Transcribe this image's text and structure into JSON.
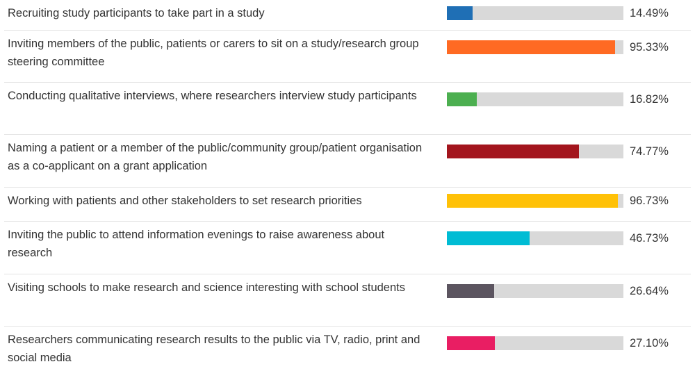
{
  "chart_data": {
    "type": "bar",
    "orientation": "horizontal",
    "xlim": [
      0,
      100
    ],
    "grid": false,
    "legend": "none",
    "categories": [
      "Recruiting study participants to take part in a study",
      "Inviting members of the public, patients or carers to sit on a study/research group steering committee",
      "Conducting qualitative interviews, where researchers interview study participants",
      "Naming a patient or a member of the public/community group/patient organisation as a co-applicant on a grant application",
      "Working with patients and other stakeholders to set research priorities",
      "Inviting the public to attend information evenings to raise awareness about research",
      "Visiting schools to make research and science interesting with school students",
      "Researchers communicating research results to the public via TV, radio, print and social media"
    ],
    "values": [
      14.49,
      95.33,
      16.82,
      74.77,
      96.73,
      46.73,
      26.64,
      27.1
    ],
    "value_labels": [
      "14.49%",
      "95.33%",
      "16.82%",
      "74.77%",
      "96.73%",
      "46.73%",
      "26.64%",
      "27.10%"
    ],
    "colors": [
      "#1f6fb5",
      "#ff6a23",
      "#4caf50",
      "#a3151d",
      "#ffc107",
      "#00bcd4",
      "#5c5560",
      "#e91e63"
    ],
    "track_color": "#d9d9d9"
  }
}
